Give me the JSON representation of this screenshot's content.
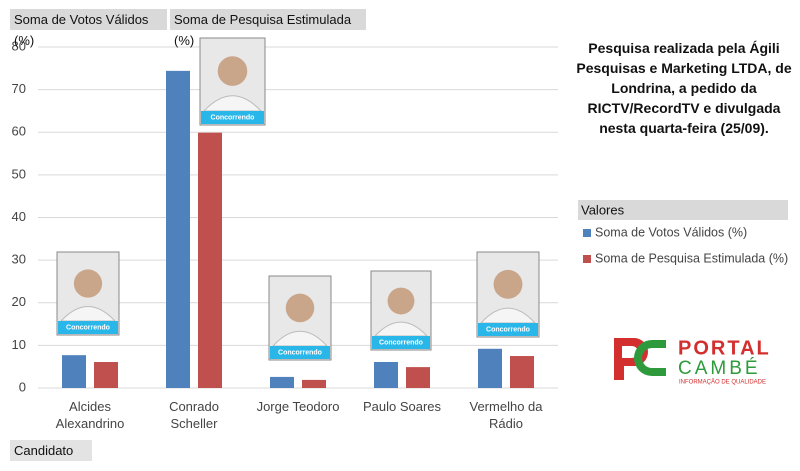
{
  "chart_data": {
    "type": "bar",
    "categories": [
      "Alcides Alexandrino",
      "Conrado Scheller",
      "Jorge Teodoro",
      "Paulo Soares",
      "Vermelho da Rádio"
    ],
    "series": [
      {
        "name": "Soma de Votos Válidos (%)",
        "color": "#4f81bd",
        "values": [
          7.7,
          74.4,
          2.6,
          6.1,
          9.2
        ]
      },
      {
        "name": "Soma de Pesquisa Estimulada (%)",
        "color": "#c0504d",
        "values": [
          6.1,
          59.9,
          1.9,
          4.9,
          7.5
        ]
      }
    ],
    "ylim": [
      0,
      80
    ],
    "yticks": [
      0,
      10,
      20,
      30,
      40,
      50,
      60,
      70,
      80
    ],
    "grid": true,
    "legend_title": "Valores",
    "legend": "right",
    "xlabel": "Candidato",
    "annotation": "Pesquisa realizada pela Ágili Pesquisas e Marketing LTDA, de Londrina, a pedido da RICTV/RecordTV e divulgada nesta quarta-feira (25/09).",
    "photo_label": "Concorrendo"
  },
  "logo": {
    "name1": "PORTAL",
    "name2": "CAMBÉ",
    "tagline": "INFORMAÇÃO DE QUALIDADE"
  }
}
